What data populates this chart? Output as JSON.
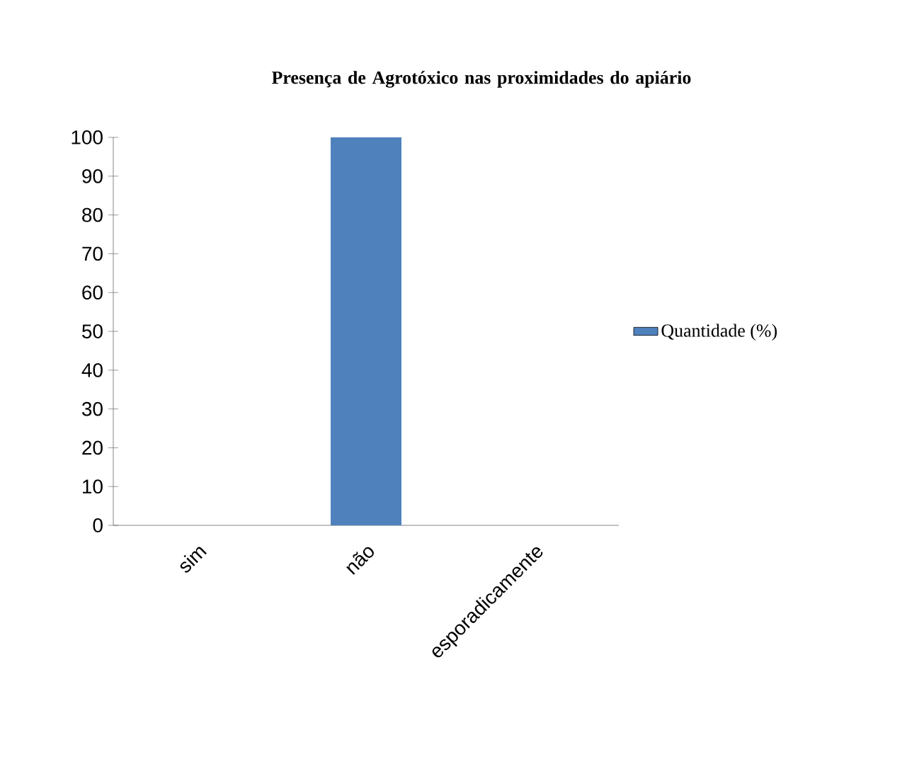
{
  "chart_data": {
    "type": "bar",
    "title": "Presença de Agrotóxico nas proximidades do apiário",
    "categories": [
      "sim",
      "não",
      "esporadicamente"
    ],
    "series": [
      {
        "name": "Quantidade (%)",
        "color": "#4f81bd",
        "values": [
          0,
          100,
          0
        ]
      }
    ],
    "ylim": [
      0,
      100
    ],
    "yticks": [
      0,
      10,
      20,
      30,
      40,
      50,
      60,
      70,
      80,
      90,
      100
    ],
    "grid": false,
    "legend": "right"
  }
}
